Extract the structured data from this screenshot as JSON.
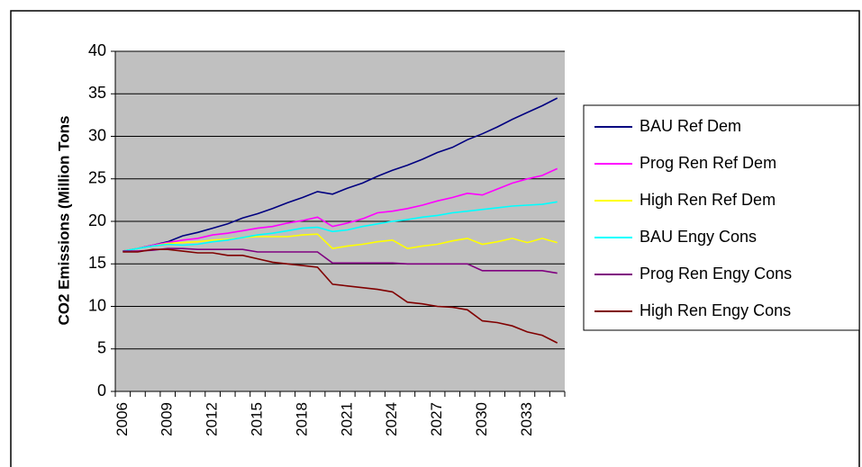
{
  "chart_data": {
    "type": "line",
    "y_label": "CO2 Emissions (Million Tons",
    "categories": [
      2006,
      null,
      null,
      2009,
      null,
      null,
      2012,
      null,
      null,
      2015,
      null,
      null,
      2018,
      null,
      null,
      2021,
      null,
      null,
      2024,
      null,
      null,
      2027,
      null,
      null,
      2030,
      null,
      null,
      2033,
      null,
      null
    ],
    "ylim": [
      0,
      40
    ],
    "yticks": [
      0,
      5,
      10,
      15,
      20,
      25,
      30,
      35,
      40
    ],
    "grid": true,
    "legend": "right",
    "series": [
      {
        "name": "BAU Ref Dem",
        "color": "#000080",
        "values": [
          16.5,
          16.8,
          17.2,
          17.6,
          18.3,
          18.7,
          19.2,
          19.7,
          20.4,
          20.9,
          21.5,
          22.2,
          22.8,
          23.5,
          23.2,
          23.9,
          24.5,
          25.3,
          26.0,
          26.6,
          27.3,
          28.1,
          28.7,
          29.6,
          30.3,
          31.1,
          32.0,
          32.8,
          33.6,
          34.5
        ]
      },
      {
        "name": "Prog Ren Ref Dem",
        "color": "#ff00ff",
        "values": [
          16.5,
          16.8,
          17.2,
          17.5,
          17.8,
          18.0,
          18.4,
          18.6,
          18.9,
          19.2,
          19.4,
          19.8,
          20.1,
          20.5,
          19.4,
          19.8,
          20.3,
          21.0,
          21.2,
          21.5,
          21.9,
          22.4,
          22.8,
          23.3,
          23.1,
          23.8,
          24.5,
          25.0,
          25.4,
          26.2
        ]
      },
      {
        "name": "High Ren Ref Dem",
        "color": "#ffff00",
        "values": [
          16.5,
          16.8,
          17.1,
          17.4,
          17.5,
          17.6,
          17.8,
          17.9,
          18.1,
          18.2,
          18.2,
          18.2,
          18.4,
          18.5,
          16.8,
          17.1,
          17.3,
          17.6,
          17.8,
          16.8,
          17.1,
          17.3,
          17.7,
          18.0,
          17.3,
          17.6,
          18.0,
          17.5,
          18.0,
          17.5
        ]
      },
      {
        "name": "BAU Engy Cons",
        "color": "#00ffff",
        "values": [
          16.5,
          16.8,
          17.1,
          17.3,
          17.2,
          17.3,
          17.6,
          17.8,
          18.1,
          18.4,
          18.6,
          18.9,
          19.2,
          19.3,
          18.8,
          19.0,
          19.4,
          19.7,
          20.0,
          20.2,
          20.5,
          20.7,
          21.0,
          21.2,
          21.4,
          21.6,
          21.8,
          21.9,
          22.0,
          22.3
        ]
      },
      {
        "name": "Prog Ren Engy Cons",
        "color": "#800080",
        "values": [
          16.5,
          16.5,
          16.6,
          16.8,
          16.8,
          16.7,
          16.7,
          16.7,
          16.7,
          16.4,
          16.4,
          16.4,
          16.4,
          16.4,
          15.1,
          15.1,
          15.1,
          15.1,
          15.1,
          15.0,
          15.0,
          15.0,
          15.0,
          15.0,
          14.2,
          14.2,
          14.2,
          14.2,
          14.2,
          13.9
        ]
      },
      {
        "name": "High Ren Engy Cons",
        "color": "#800000",
        "values": [
          16.4,
          16.4,
          16.7,
          16.7,
          16.5,
          16.3,
          16.3,
          16.0,
          16.0,
          15.6,
          15.2,
          15.0,
          14.8,
          14.6,
          12.6,
          12.4,
          12.2,
          12.0,
          11.7,
          10.5,
          10.3,
          10.0,
          9.9,
          9.6,
          8.3,
          8.1,
          7.7,
          7.0,
          6.6,
          5.7
        ]
      }
    ]
  }
}
